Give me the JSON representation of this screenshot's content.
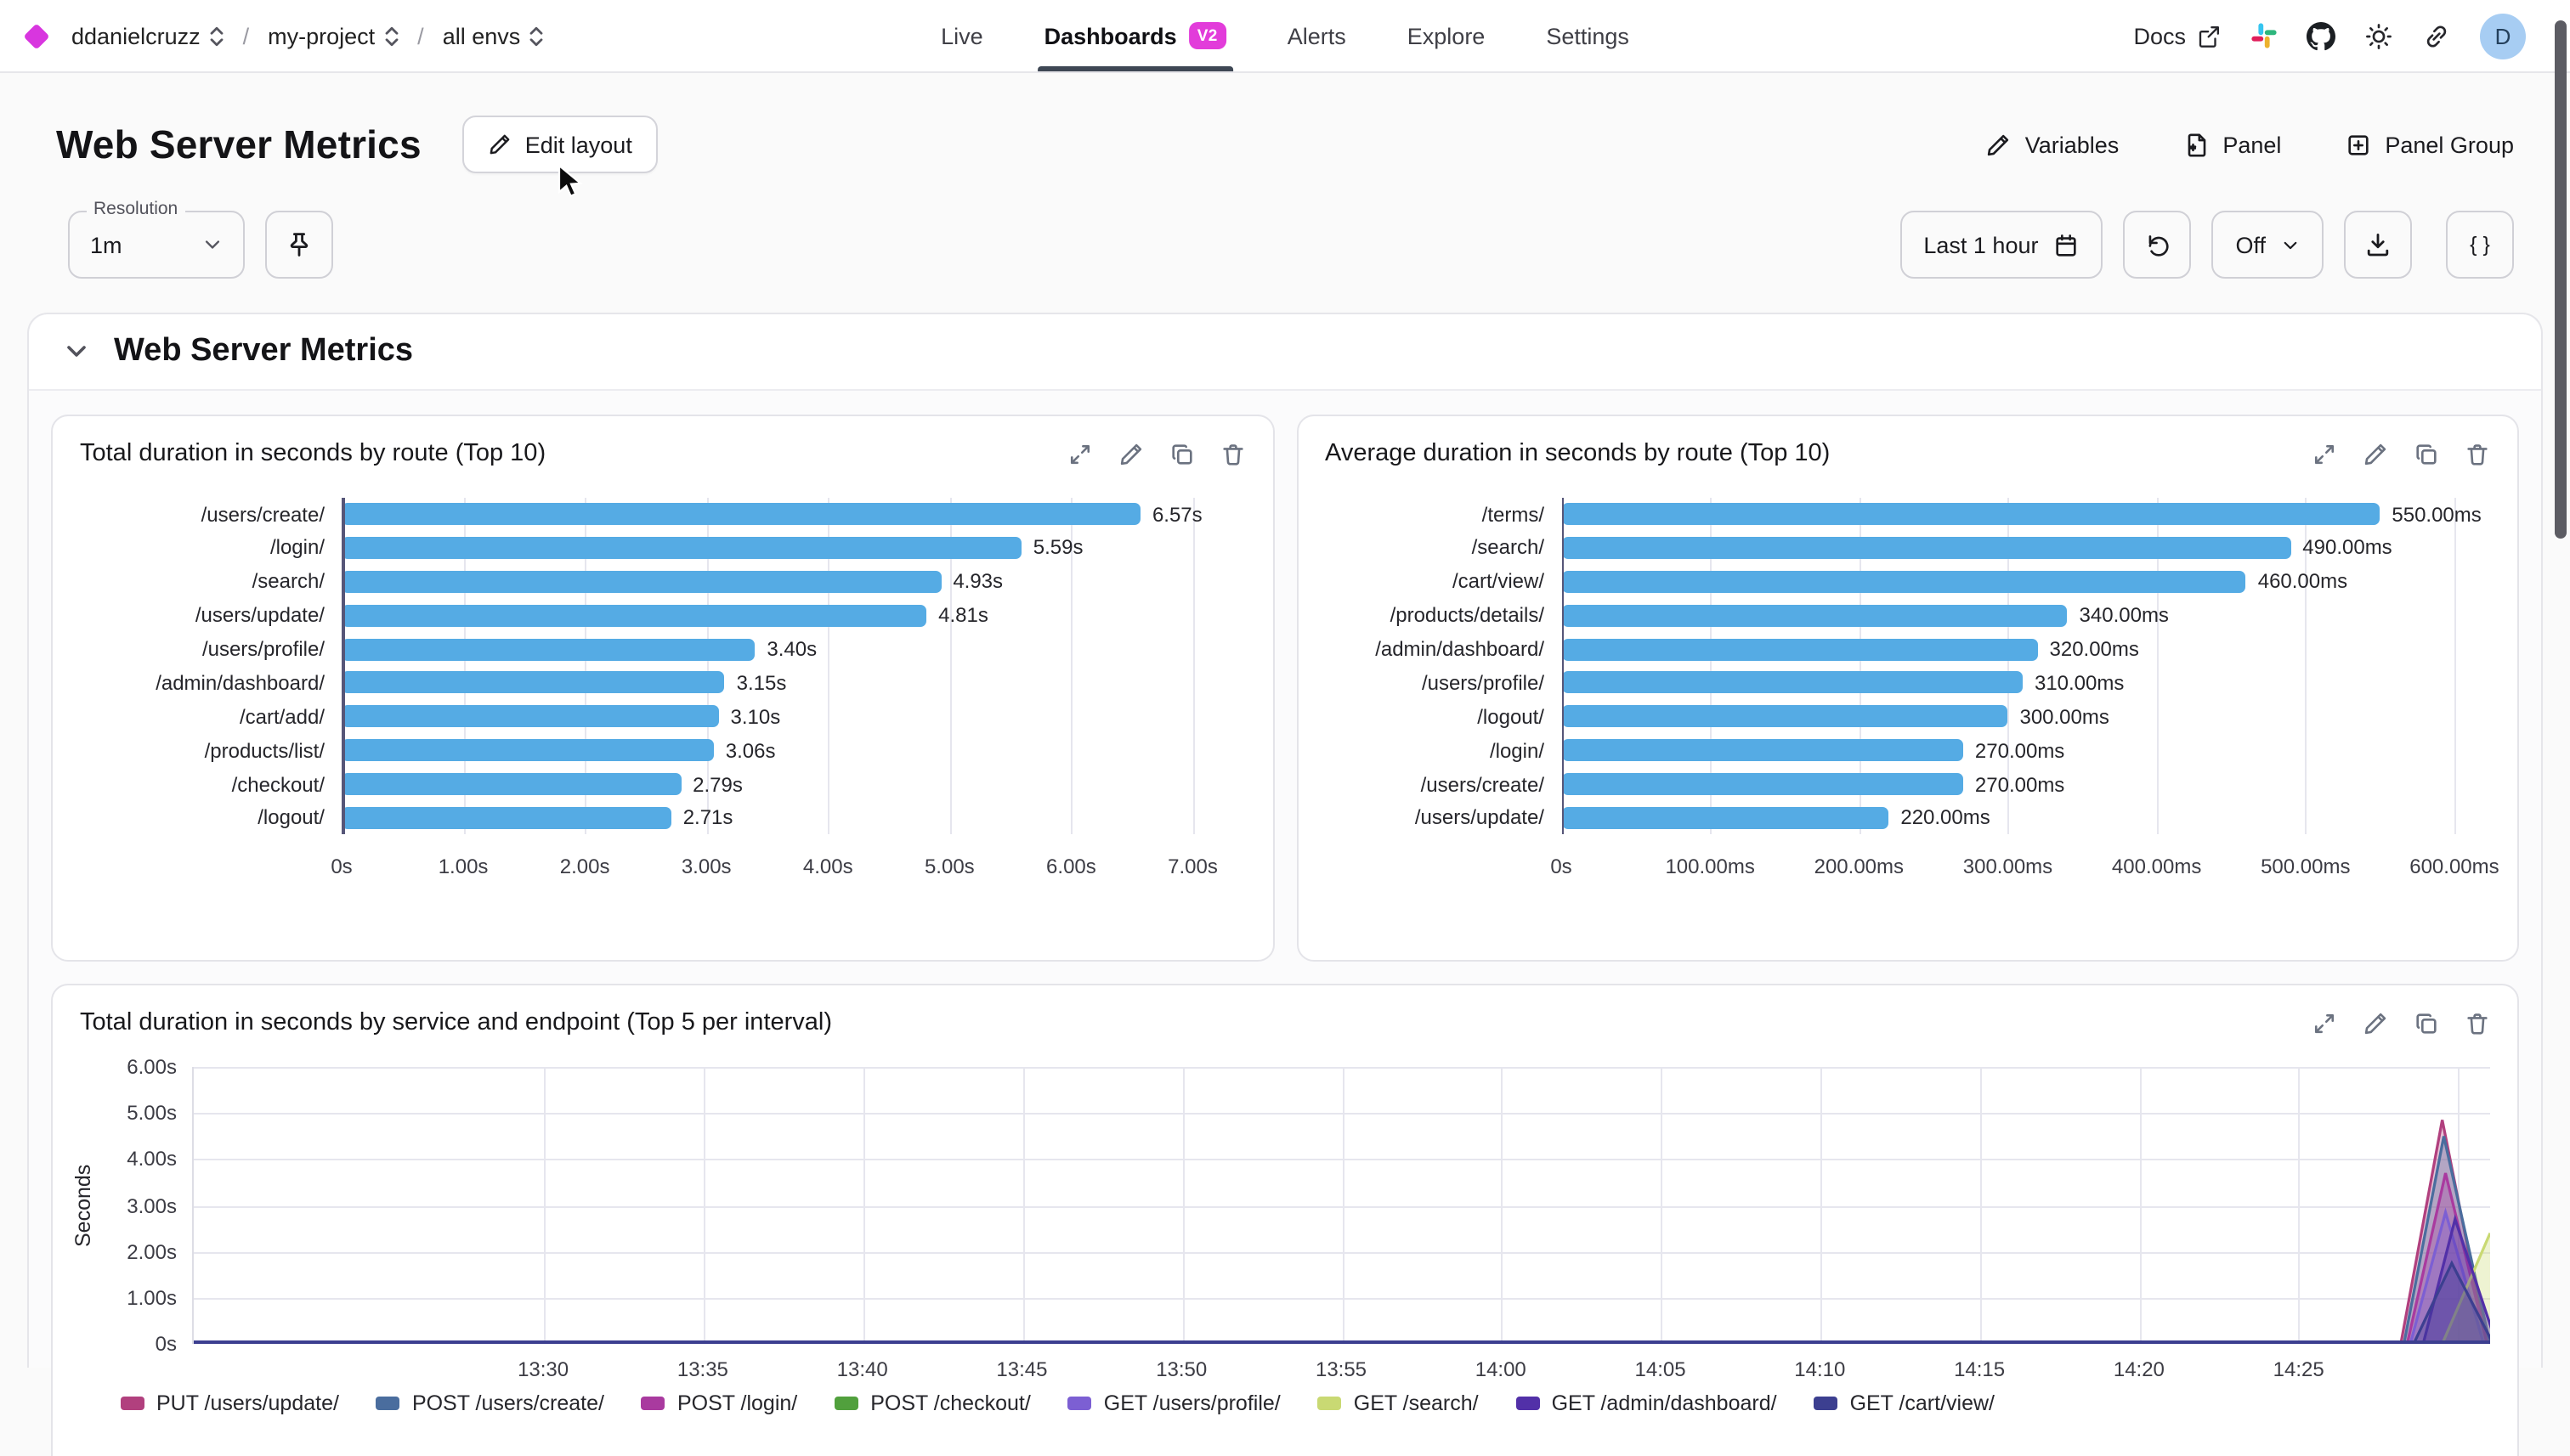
{
  "nav": {
    "breadcrumb": [
      {
        "label": "ddanielcruzz"
      },
      {
        "label": "my-project"
      },
      {
        "label": "all envs"
      }
    ],
    "separator": "/",
    "tabs": [
      {
        "label": "Live",
        "active": false
      },
      {
        "label": "Dashboards",
        "badge": "V2",
        "active": true
      },
      {
        "label": "Alerts",
        "active": false
      },
      {
        "label": "Explore",
        "active": false
      },
      {
        "label": "Settings",
        "active": false
      }
    ],
    "docs_label": "Docs",
    "avatar_initial": "D",
    "icons": [
      "external-link",
      "slack",
      "github",
      "sun",
      "link"
    ]
  },
  "header": {
    "title": "Web Server Metrics",
    "edit_layout_label": "Edit layout",
    "variables_label": "Variables",
    "panel_label": "Panel",
    "panel_group_label": "Panel Group"
  },
  "controls": {
    "resolution_label": "Resolution",
    "resolution_value": "1m",
    "time_range_label": "Last 1 hour",
    "refresh_value": "Off",
    "code_button_label": "{ }",
    "icons": [
      "pin",
      "calendar",
      "refresh",
      "chevron-down",
      "download",
      "braces"
    ]
  },
  "section": {
    "title": "Web Server Metrics"
  },
  "panel_action_icons": [
    "expand",
    "edit",
    "duplicate",
    "delete"
  ],
  "colors": {
    "accent_magenta": "#e23cda",
    "bar_blue": "#55abe4",
    "tab_underline": "#3e4754",
    "avatar_bg": "#a7cdf3",
    "baseline_indigo": "#3c3f90"
  },
  "chart_data": [
    {
      "type": "bar",
      "orientation": "horizontal",
      "title": "Total duration in seconds by route (Top 10)",
      "categories": [
        "/users/create/",
        "/login/",
        "/search/",
        "/users/update/",
        "/users/profile/",
        "/admin/dashboard/",
        "/cart/add/",
        "/products/list/",
        "/checkout/",
        "/logout/"
      ],
      "values": [
        6.57,
        5.59,
        4.93,
        4.81,
        3.4,
        3.15,
        3.1,
        3.06,
        2.79,
        2.71
      ],
      "value_labels": [
        "6.57s",
        "5.59s",
        "4.93s",
        "4.81s",
        "3.40s",
        "3.15s",
        "3.10s",
        "3.06s",
        "2.79s",
        "2.71s"
      ],
      "x_ticks": [
        {
          "v": 0,
          "label": "0s"
        },
        {
          "v": 1,
          "label": "1.00s"
        },
        {
          "v": 2,
          "label": "2.00s"
        },
        {
          "v": 3,
          "label": "3.00s"
        },
        {
          "v": 4,
          "label": "4.00s"
        },
        {
          "v": 5,
          "label": "5.00s"
        },
        {
          "v": 6,
          "label": "6.00s"
        },
        {
          "v": 7,
          "label": "7.00s"
        }
      ],
      "max": 7.43,
      "bar_color": "#55abe4",
      "grid": true
    },
    {
      "type": "bar",
      "orientation": "horizontal",
      "title": "Average duration in seconds by route (Top 10)",
      "categories": [
        "/terms/",
        "/search/",
        "/cart/view/",
        "/products/details/",
        "/admin/dashboard/",
        "/users/profile/",
        "/logout/",
        "/login/",
        "/users/create/",
        "/users/update/"
      ],
      "values": [
        550,
        490,
        460,
        340,
        320,
        310,
        300,
        270,
        270,
        220
      ],
      "value_labels": [
        "550.00ms",
        "490.00ms",
        "460.00ms",
        "340.00ms",
        "320.00ms",
        "310.00ms",
        "300.00ms",
        "270.00ms",
        "270.00ms",
        "220.00ms"
      ],
      "x_ticks": [
        {
          "v": 0,
          "label": "0s"
        },
        {
          "v": 100,
          "label": "100.00ms"
        },
        {
          "v": 200,
          "label": "200.00ms"
        },
        {
          "v": 300,
          "label": "300.00ms"
        },
        {
          "v": 400,
          "label": "400.00ms"
        },
        {
          "v": 500,
          "label": "500.00ms"
        },
        {
          "v": 600,
          "label": "600.00ms"
        }
      ],
      "max": 624,
      "bar_color": "#55abe4",
      "grid": true
    },
    {
      "type": "line",
      "title": "Total duration in seconds by service and endpoint (Top 5 per interval)",
      "ylabel": "Seconds",
      "ymax": 6,
      "y_ticks": [
        {
          "v": 6,
          "label": "6.00s"
        },
        {
          "v": 5,
          "label": "5.00s"
        },
        {
          "v": 4,
          "label": "4.00s"
        },
        {
          "v": 3,
          "label": "3.00s"
        },
        {
          "v": 2,
          "label": "2.00s"
        },
        {
          "v": 1,
          "label": "1.00s"
        },
        {
          "v": 0,
          "label": "0s"
        }
      ],
      "domain_minutes": {
        "min": -11,
        "max": 61,
        "origin_label": "13:30"
      },
      "x_gridlines_m": [
        0,
        5,
        10,
        15,
        20,
        25,
        30,
        35,
        40,
        45,
        50,
        55,
        60
      ],
      "x_ticks": [
        {
          "m": 0,
          "label": "13:30"
        },
        {
          "m": 5,
          "label": "13:35"
        },
        {
          "m": 10,
          "label": "13:40"
        },
        {
          "m": 15,
          "label": "13:45"
        },
        {
          "m": 20,
          "label": "13:50"
        },
        {
          "m": 25,
          "label": "13:55"
        },
        {
          "m": 30,
          "label": "14:00"
        },
        {
          "m": 35,
          "label": "14:05"
        },
        {
          "m": 40,
          "label": "14:10"
        },
        {
          "m": 45,
          "label": "14:15"
        },
        {
          "m": 50,
          "label": "14:20"
        },
        {
          "m": 55,
          "label": "14:25"
        }
      ],
      "series": [
        {
          "name": "PUT /users/update/",
          "color": "#b1407e",
          "points": [
            {
              "m": -11,
              "v": 0
            },
            {
              "m": 58.2,
              "v": 0
            },
            {
              "m": 59.5,
              "v": 4.85
            },
            {
              "m": 60.9,
              "v": 0
            }
          ]
        },
        {
          "name": "POST /users/create/",
          "color": "#4a6d9e",
          "points": [
            {
              "m": -11,
              "v": 0
            },
            {
              "m": 58.3,
              "v": 0
            },
            {
              "m": 59.55,
              "v": 4.5
            },
            {
              "m": 61,
              "v": 0
            }
          ]
        },
        {
          "name": "POST /login/",
          "color": "#a93a9f",
          "points": [
            {
              "m": -11,
              "v": 0
            },
            {
              "m": 58.4,
              "v": 0
            },
            {
              "m": 59.6,
              "v": 3.7
            },
            {
              "m": 60.9,
              "v": 0
            }
          ]
        },
        {
          "name": "POST /checkout/",
          "color": "#51a03d",
          "points": [
            {
              "m": -11,
              "v": 0
            },
            {
              "m": 61,
              "v": 0
            }
          ]
        },
        {
          "name": "GET /users/profile/",
          "color": "#7c5fd3",
          "points": [
            {
              "m": -11,
              "v": 0
            },
            {
              "m": 58.5,
              "v": 0
            },
            {
              "m": 59.6,
              "v": 2.85
            },
            {
              "m": 60.8,
              "v": 0
            }
          ]
        },
        {
          "name": "GET /search/",
          "color": "#c9d973",
          "points": [
            {
              "m": -11,
              "v": 0
            },
            {
              "m": 59.5,
              "v": 0
            },
            {
              "m": 61,
              "v": 2.4
            }
          ]
        },
        {
          "name": "GET /admin/dashboard/",
          "color": "#5230a8",
          "points": [
            {
              "m": -11,
              "v": 0
            },
            {
              "m": 58.9,
              "v": 0
            },
            {
              "m": 59.9,
              "v": 2.7
            },
            {
              "m": 61.2,
              "v": 0
            }
          ]
        },
        {
          "name": "GET /cart/view/",
          "color": "#3c3f90",
          "points": [
            {
              "m": -11,
              "v": 0
            },
            {
              "m": 58.6,
              "v": 0
            },
            {
              "m": 59.8,
              "v": 1.75
            },
            {
              "m": 61.1,
              "v": 0
            }
          ]
        }
      ],
      "baseline_color": "#3c3f90",
      "fill_opacity": 0.32,
      "legend_position": "bottom"
    }
  ]
}
